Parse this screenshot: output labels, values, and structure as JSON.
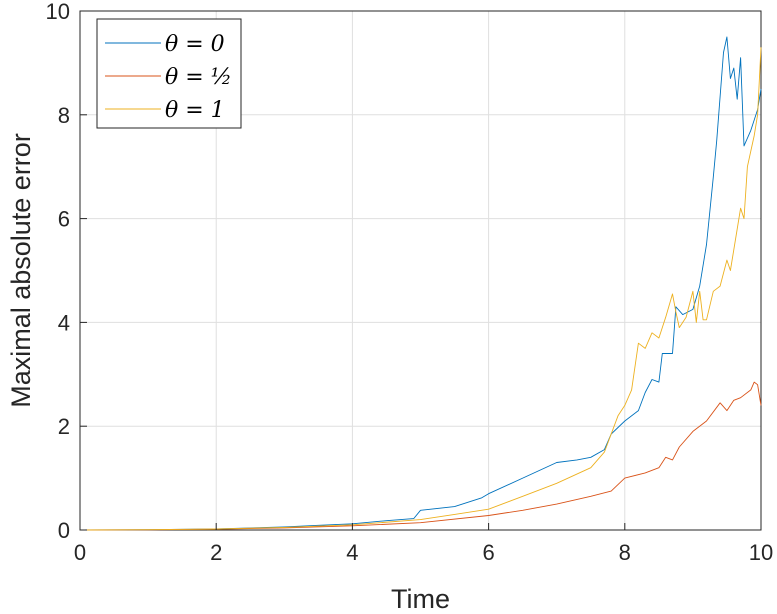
{
  "chart_data": {
    "type": "line",
    "title": "",
    "xlabel": "Time",
    "ylabel": "Maximal absolute error",
    "xlim": [
      0,
      10
    ],
    "ylim": [
      0,
      10
    ],
    "xticks": [
      "0",
      "2",
      "4",
      "6",
      "8",
      "10"
    ],
    "yticks": [
      "0",
      "2",
      "4",
      "6",
      "8",
      "10"
    ],
    "grid": true,
    "legend_position": "top-left",
    "series": [
      {
        "name": "θ = 0",
        "color": "#0072BD",
        "points": [
          [
            0,
            0
          ],
          [
            1,
            0.005
          ],
          [
            2,
            0.02
          ],
          [
            3,
            0.06
          ],
          [
            3.5,
            0.09
          ],
          [
            4,
            0.12
          ],
          [
            4.5,
            0.18
          ],
          [
            4.9,
            0.22
          ],
          [
            5.0,
            0.38
          ],
          [
            5.5,
            0.45
          ],
          [
            5.9,
            0.62
          ],
          [
            6.0,
            0.7
          ],
          [
            6.5,
            1.0
          ],
          [
            7.0,
            1.3
          ],
          [
            7.3,
            1.35
          ],
          [
            7.5,
            1.4
          ],
          [
            7.7,
            1.55
          ],
          [
            7.8,
            1.85
          ],
          [
            8.0,
            2.1
          ],
          [
            8.2,
            2.3
          ],
          [
            8.3,
            2.65
          ],
          [
            8.4,
            2.9
          ],
          [
            8.5,
            2.85
          ],
          [
            8.55,
            3.4
          ],
          [
            8.7,
            3.4
          ],
          [
            8.75,
            4.3
          ],
          [
            8.85,
            4.15
          ],
          [
            9.0,
            4.25
          ],
          [
            9.1,
            4.7
          ],
          [
            9.2,
            5.5
          ],
          [
            9.3,
            6.8
          ],
          [
            9.35,
            7.5
          ],
          [
            9.45,
            9.2
          ],
          [
            9.5,
            9.5
          ],
          [
            9.55,
            8.7
          ],
          [
            9.6,
            8.9
          ],
          [
            9.65,
            8.3
          ],
          [
            9.7,
            9.1
          ],
          [
            9.75,
            7.4
          ],
          [
            9.85,
            7.7
          ],
          [
            9.95,
            8.1
          ],
          [
            10,
            8.5
          ]
        ]
      },
      {
        "name": "θ = ½",
        "color": "#D95319",
        "points": [
          [
            0,
            0
          ],
          [
            1,
            0.004
          ],
          [
            2,
            0.015
          ],
          [
            3,
            0.04
          ],
          [
            4,
            0.08
          ],
          [
            5,
            0.14
          ],
          [
            6,
            0.28
          ],
          [
            6.5,
            0.38
          ],
          [
            7,
            0.5
          ],
          [
            7.5,
            0.65
          ],
          [
            7.8,
            0.75
          ],
          [
            8.0,
            1.0
          ],
          [
            8.3,
            1.1
          ],
          [
            8.5,
            1.2
          ],
          [
            8.6,
            1.4
          ],
          [
            8.7,
            1.35
          ],
          [
            8.8,
            1.6
          ],
          [
            9.0,
            1.9
          ],
          [
            9.2,
            2.1
          ],
          [
            9.4,
            2.45
          ],
          [
            9.5,
            2.3
          ],
          [
            9.6,
            2.5
          ],
          [
            9.7,
            2.55
          ],
          [
            9.85,
            2.7
          ],
          [
            9.9,
            2.85
          ],
          [
            9.95,
            2.8
          ],
          [
            10,
            2.4
          ]
        ]
      },
      {
        "name": "θ = 1",
        "color": "#EDB120",
        "points": [
          [
            0,
            0
          ],
          [
            1,
            0.005
          ],
          [
            2,
            0.02
          ],
          [
            3,
            0.05
          ],
          [
            4,
            0.1
          ],
          [
            5,
            0.2
          ],
          [
            5.5,
            0.3
          ],
          [
            6,
            0.4
          ],
          [
            6.5,
            0.65
          ],
          [
            7.0,
            0.9
          ],
          [
            7.5,
            1.2
          ],
          [
            7.7,
            1.5
          ],
          [
            7.9,
            2.2
          ],
          [
            8.0,
            2.4
          ],
          [
            8.1,
            2.7
          ],
          [
            8.2,
            3.6
          ],
          [
            8.3,
            3.5
          ],
          [
            8.4,
            3.8
          ],
          [
            8.5,
            3.7
          ],
          [
            8.6,
            4.1
          ],
          [
            8.7,
            4.55
          ],
          [
            8.75,
            4.2
          ],
          [
            8.8,
            3.9
          ],
          [
            8.9,
            4.1
          ],
          [
            9.0,
            4.6
          ],
          [
            9.05,
            4.0
          ],
          [
            9.1,
            4.6
          ],
          [
            9.15,
            4.05
          ],
          [
            9.2,
            4.05
          ],
          [
            9.3,
            4.6
          ],
          [
            9.4,
            4.7
          ],
          [
            9.5,
            5.2
          ],
          [
            9.55,
            5.0
          ],
          [
            9.65,
            5.8
          ],
          [
            9.7,
            6.2
          ],
          [
            9.75,
            6.0
          ],
          [
            9.8,
            7.0
          ],
          [
            9.85,
            7.3
          ],
          [
            9.9,
            7.6
          ],
          [
            9.95,
            8.0
          ],
          [
            10,
            9.3
          ]
        ]
      }
    ]
  }
}
